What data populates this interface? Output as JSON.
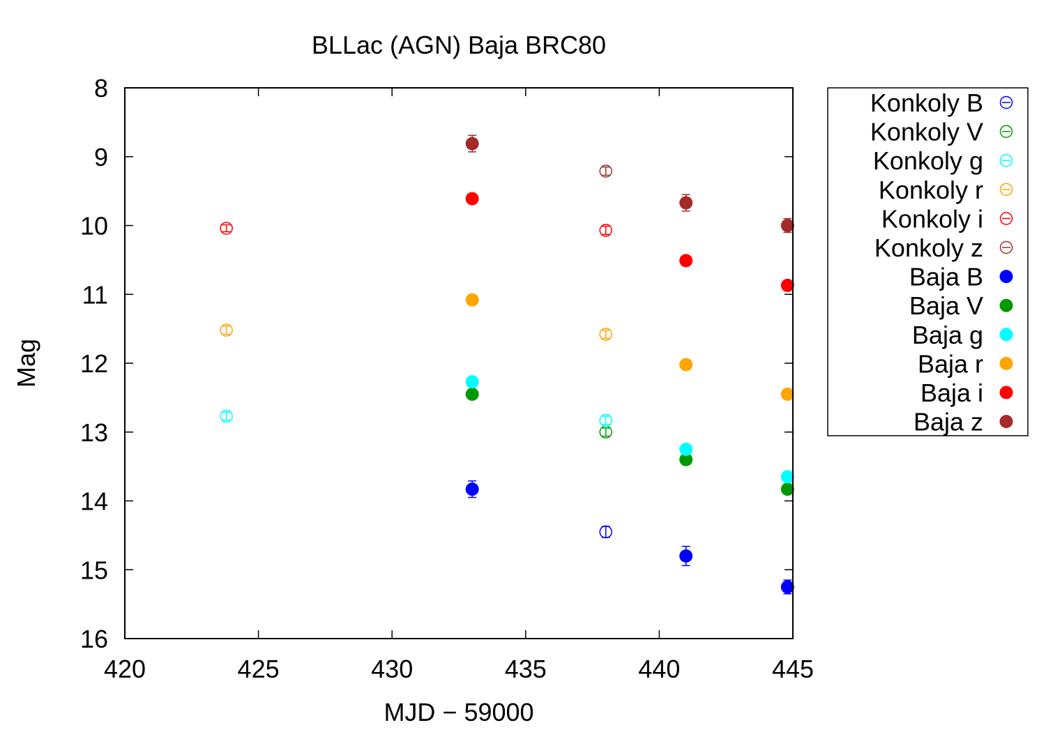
{
  "chart_data": {
    "type": "scatter",
    "title": "BLLac (AGN) Baja BRC80",
    "xlabel": "MJD − 59000",
    "ylabel": "Mag",
    "xlim": [
      420,
      445
    ],
    "ylim": [
      8,
      16
    ],
    "y_inverted": true,
    "x_ticks": [
      "420",
      "425",
      "430",
      "435",
      "440",
      "445"
    ],
    "y_ticks": [
      "8",
      "9",
      "10",
      "11",
      "12",
      "13",
      "14",
      "15",
      "16"
    ],
    "grid": false,
    "legend_position": "outside-right",
    "series": [
      {
        "name": "Konkoly B",
        "marker": "open-circle",
        "color": "#0000ff",
        "points": [
          {
            "x": 438.0,
            "y": 14.45,
            "err": 0.08
          }
        ]
      },
      {
        "name": "Konkoly V",
        "marker": "open-circle",
        "color": "#009900",
        "points": [
          {
            "x": 438.0,
            "y": 13.0,
            "err": 0.06
          }
        ]
      },
      {
        "name": "Konkoly g",
        "marker": "open-circle",
        "color": "#00ffff",
        "points": [
          {
            "x": 423.8,
            "y": 12.77,
            "err": 0.06
          },
          {
            "x": 438.0,
            "y": 12.83,
            "err": 0.06
          }
        ]
      },
      {
        "name": "Konkoly r",
        "marker": "open-circle",
        "color": "#ffa500",
        "points": [
          {
            "x": 423.8,
            "y": 11.52,
            "err": 0.06
          },
          {
            "x": 438.0,
            "y": 11.58,
            "err": 0.06
          }
        ]
      },
      {
        "name": "Konkoly i",
        "marker": "open-circle",
        "color": "#ff0000",
        "points": [
          {
            "x": 423.8,
            "y": 10.04,
            "err": 0.05
          },
          {
            "x": 438.0,
            "y": 10.07,
            "err": 0.06
          }
        ]
      },
      {
        "name": "Konkoly z",
        "marker": "open-circle",
        "color": "#a52a2a",
        "points": [
          {
            "x": 438.0,
            "y": 9.21,
            "err": 0.06
          }
        ]
      },
      {
        "name": "Baja B",
        "marker": "filled-circle",
        "color": "#0000ff",
        "points": [
          {
            "x": 433.0,
            "y": 13.83,
            "err": 0.12
          },
          {
            "x": 441.0,
            "y": 14.8,
            "err": 0.14
          },
          {
            "x": 444.8,
            "y": 15.25,
            "err": 0.1
          }
        ]
      },
      {
        "name": "Baja V",
        "marker": "filled-circle",
        "color": "#009900",
        "points": [
          {
            "x": 433.0,
            "y": 12.45,
            "err": 0.03
          },
          {
            "x": 441.0,
            "y": 13.4,
            "err": 0.03
          },
          {
            "x": 444.8,
            "y": 13.83,
            "err": 0.03
          }
        ]
      },
      {
        "name": "Baja g",
        "marker": "filled-circle",
        "color": "#00ffff",
        "points": [
          {
            "x": 433.0,
            "y": 12.27,
            "err": 0.05
          },
          {
            "x": 441.0,
            "y": 13.25,
            "err": 0.04
          },
          {
            "x": 444.8,
            "y": 13.65,
            "err": 0.03
          }
        ]
      },
      {
        "name": "Baja r",
        "marker": "filled-circle",
        "color": "#ffa500",
        "points": [
          {
            "x": 433.0,
            "y": 11.08,
            "err": 0.02
          },
          {
            "x": 441.0,
            "y": 12.02,
            "err": 0.02
          },
          {
            "x": 444.8,
            "y": 12.45,
            "err": 0.02
          }
        ]
      },
      {
        "name": "Baja i",
        "marker": "filled-circle",
        "color": "#ff0000",
        "points": [
          {
            "x": 433.0,
            "y": 9.61,
            "err": 0.02
          },
          {
            "x": 441.0,
            "y": 10.51,
            "err": 0.02
          },
          {
            "x": 444.8,
            "y": 10.87,
            "err": 0.02
          }
        ]
      },
      {
        "name": "Baja z",
        "marker": "filled-circle",
        "color": "#a52a2a",
        "points": [
          {
            "x": 433.0,
            "y": 8.81,
            "err": 0.12
          },
          {
            "x": 441.0,
            "y": 9.67,
            "err": 0.12
          },
          {
            "x": 444.8,
            "y": 10.0,
            "err": 0.1
          }
        ]
      }
    ]
  }
}
